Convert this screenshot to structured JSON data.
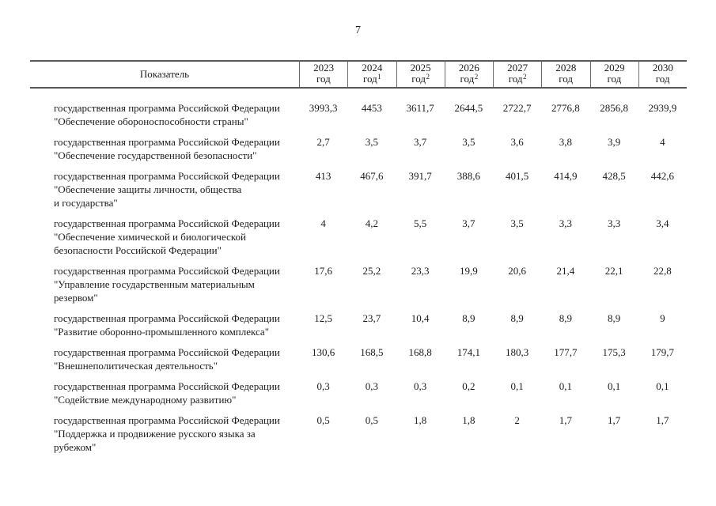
{
  "page": {
    "number": "7"
  },
  "table": {
    "header": {
      "indicator_label": "Показатель",
      "year_columns": [
        {
          "year": "2023",
          "unit": "год",
          "sup": ""
        },
        {
          "year": "2024",
          "unit": "год",
          "sup": "1"
        },
        {
          "year": "2025",
          "unit": "год",
          "sup": "2"
        },
        {
          "year": "2026",
          "unit": "год",
          "sup": "2"
        },
        {
          "year": "2027",
          "unit": "год",
          "sup": "2"
        },
        {
          "year": "2028",
          "unit": "год",
          "sup": ""
        },
        {
          "year": "2029",
          "unit": "год",
          "sup": ""
        },
        {
          "year": "2030",
          "unit": "год",
          "sup": ""
        }
      ]
    },
    "rows": [
      {
        "name_lines": [
          "государственная программа Российской Федерации",
          "\"Обеспечение обороноспособности страны\""
        ],
        "values": [
          "3993,3",
          "4453",
          "3611,7",
          "2644,5",
          "2722,7",
          "2776,8",
          "2856,8",
          "2939,9"
        ]
      },
      {
        "name_lines": [
          "государственная программа Российской Федерации",
          "\"Обеспечение государственной безопасности\""
        ],
        "values": [
          "2,7",
          "3,5",
          "3,7",
          "3,5",
          "3,6",
          "3,8",
          "3,9",
          "4"
        ]
      },
      {
        "name_lines": [
          "государственная программа Российской Федерации",
          "\"Обеспечение защиты личности, общества",
          "и государства\""
        ],
        "values": [
          "413",
          "467,6",
          "391,7",
          "388,6",
          "401,5",
          "414,9",
          "428,5",
          "442,6"
        ]
      },
      {
        "name_lines": [
          "государственная программа Российской Федерации",
          "\"Обеспечение химической и биологической",
          "безопасности Российской Федерации\""
        ],
        "values": [
          "4",
          "4,2",
          "5,5",
          "3,7",
          "3,5",
          "3,3",
          "3,3",
          "3,4"
        ]
      },
      {
        "name_lines": [
          "государственная программа Российской Федерации",
          "\"Управление государственным материальным",
          "резервом\""
        ],
        "values": [
          "17,6",
          "25,2",
          "23,3",
          "19,9",
          "20,6",
          "21,4",
          "22,1",
          "22,8"
        ]
      },
      {
        "name_lines": [
          "государственная программа Российской Федерации",
          "\"Развитие оборонно-промышленного комплекса\""
        ],
        "values": [
          "12,5",
          "23,7",
          "10,4",
          "8,9",
          "8,9",
          "8,9",
          "8,9",
          "9"
        ]
      },
      {
        "name_lines": [
          "государственная программа Российской Федерации",
          "\"Внешнеполитическая деятельность\""
        ],
        "values": [
          "130,6",
          "168,5",
          "168,8",
          "174,1",
          "180,3",
          "177,7",
          "175,3",
          "179,7"
        ]
      },
      {
        "name_lines": [
          "государственная программа Российской Федерации",
          "\"Содействие международному развитию\""
        ],
        "values": [
          "0,3",
          "0,3",
          "0,3",
          "0,2",
          "0,1",
          "0,1",
          "0,1",
          "0,1"
        ]
      },
      {
        "name_lines": [
          "государственная программа Российской Федерации",
          "\"Поддержка и продвижение русского языка за рубежом\""
        ],
        "values": [
          "0,5",
          "0,5",
          "1,8",
          "1,8",
          "2",
          "1,7",
          "1,7",
          "1,7"
        ]
      }
    ]
  },
  "colors": {
    "text": "#1c1c1c",
    "rule_heavy": "#595959",
    "rule_light": "#6e6e6e",
    "background": "#ffffff"
  }
}
